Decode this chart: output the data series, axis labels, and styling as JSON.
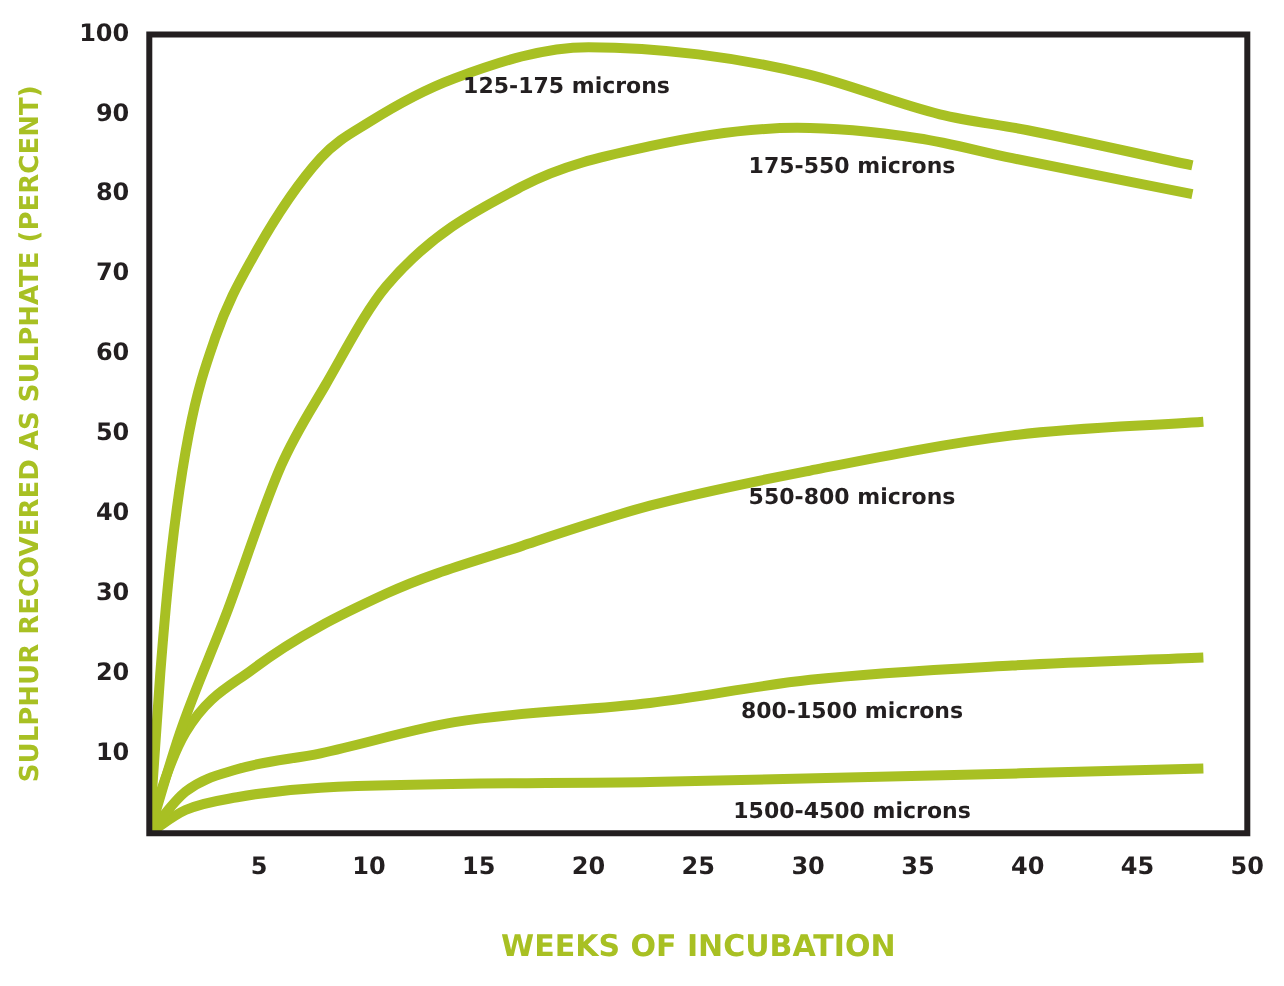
{
  "chart_data": {
    "type": "line",
    "xlabel": "WEEKS OF INCUBATION",
    "ylabel": "SULPHUR RECOVERED AS SULPHATE (PERCENT)",
    "xlim": [
      0,
      50
    ],
    "xticks": [
      5,
      10,
      15,
      20,
      25,
      30,
      35,
      40,
      45,
      50
    ],
    "ylim": [
      0,
      100
    ],
    "yticks": [
      10,
      20,
      30,
      40,
      50,
      60,
      70,
      80,
      90,
      100
    ],
    "grid": false,
    "legend": false,
    "marker": "none",
    "line_style": "solid",
    "series": [
      {
        "name": "125-175 microns",
        "color": "#a8c023",
        "x": [
          0,
          0.5,
          1,
          1.8,
          3,
          4.7,
          7.8,
          10,
          13.9,
          20,
          25,
          30,
          36,
          40,
          47.5
        ],
        "values": [
          0,
          20,
          35,
          50,
          62,
          72,
          84.5,
          89,
          94.5,
          98.4,
          97.5,
          95,
          90,
          88,
          83.6
        ]
      },
      {
        "name": "175-550 microns",
        "color": "#a8c023",
        "x": [
          0,
          1.4,
          3.5,
          6,
          8,
          10.8,
          17,
          22.8,
          29.5,
          35,
          39.3,
          47.5
        ],
        "values": [
          0,
          12.6,
          27.4,
          46,
          56,
          68.5,
          81,
          86,
          88.3,
          87,
          84.5,
          80
        ]
      },
      {
        "name": "550-800 microns",
        "color": "#a8c023",
        "x": [
          0,
          0.5,
          1.65,
          4.7,
          10.8,
          17,
          22.8,
          30.1,
          39.3,
          48
        ],
        "values": [
          0,
          5,
          12.6,
          20.5,
          30,
          36,
          41,
          45.4,
          49.8,
          51.5
        ]
      },
      {
        "name": "800-1500 microns",
        "color": "#a8c023",
        "x": [
          0,
          1.65,
          4,
          7.8,
          13.9,
          22.8,
          30.1,
          39.3,
          48
        ],
        "values": [
          0,
          5.2,
          8,
          10,
          13.9,
          16.3,
          19.2,
          21,
          22
        ]
      },
      {
        "name": "1500-4500 microns",
        "color": "#a8c023",
        "x": [
          0,
          1.65,
          4,
          7.8,
          22.8,
          48
        ],
        "values": [
          0,
          2.9,
          4.5,
          5.7,
          6.4,
          8.1
        ]
      }
    ]
  }
}
